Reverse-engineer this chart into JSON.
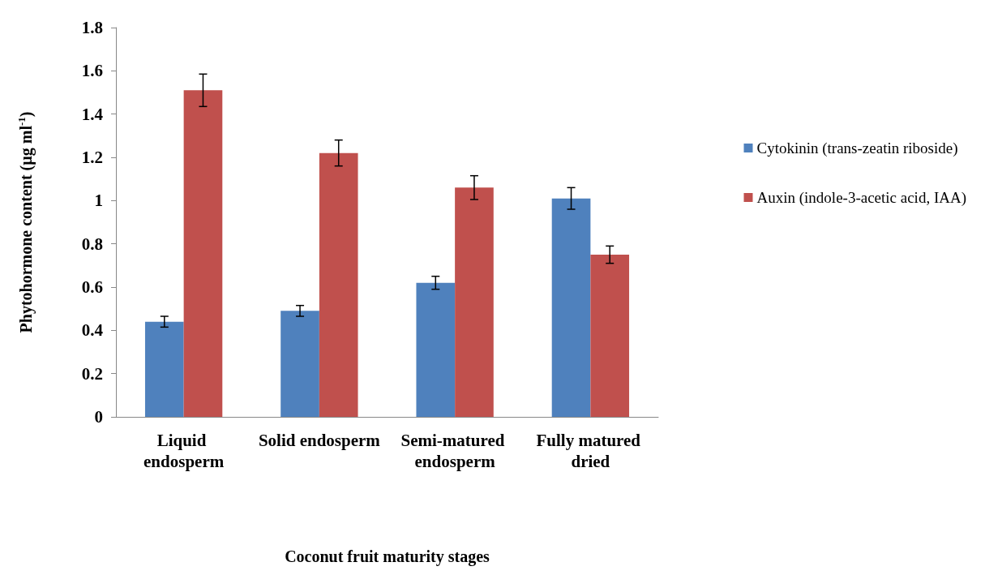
{
  "chart_data": {
    "type": "bar",
    "xlabel": "Coconut fruit maturity stages",
    "ylabel": "Phytohormone content (µg ml$^{-1}$)",
    "categories": [
      "Liquid endosperm",
      "Solid endosperm",
      "Semi-matured endosperm",
      "Fully matured dried"
    ],
    "series": [
      {
        "name": "Cytokinin (trans-zeatin riboside)",
        "color": "#4f81bd",
        "values": [
          0.44,
          0.49,
          0.62,
          1.01
        ],
        "errors": [
          0.025,
          0.025,
          0.03,
          0.05
        ]
      },
      {
        "name": "Auxin (indole-3-acetic acid, IAA)",
        "color": "#c0504d",
        "values": [
          1.51,
          1.22,
          1.06,
          0.75
        ],
        "errors": [
          0.075,
          0.06,
          0.055,
          0.04
        ]
      }
    ],
    "ylim": [
      0,
      1.8
    ],
    "yticks": [
      0,
      0.2,
      0.4,
      0.6,
      0.8,
      1,
      1.2,
      1.4,
      1.6,
      1.8
    ],
    "grid": false,
    "legend": "right"
  }
}
